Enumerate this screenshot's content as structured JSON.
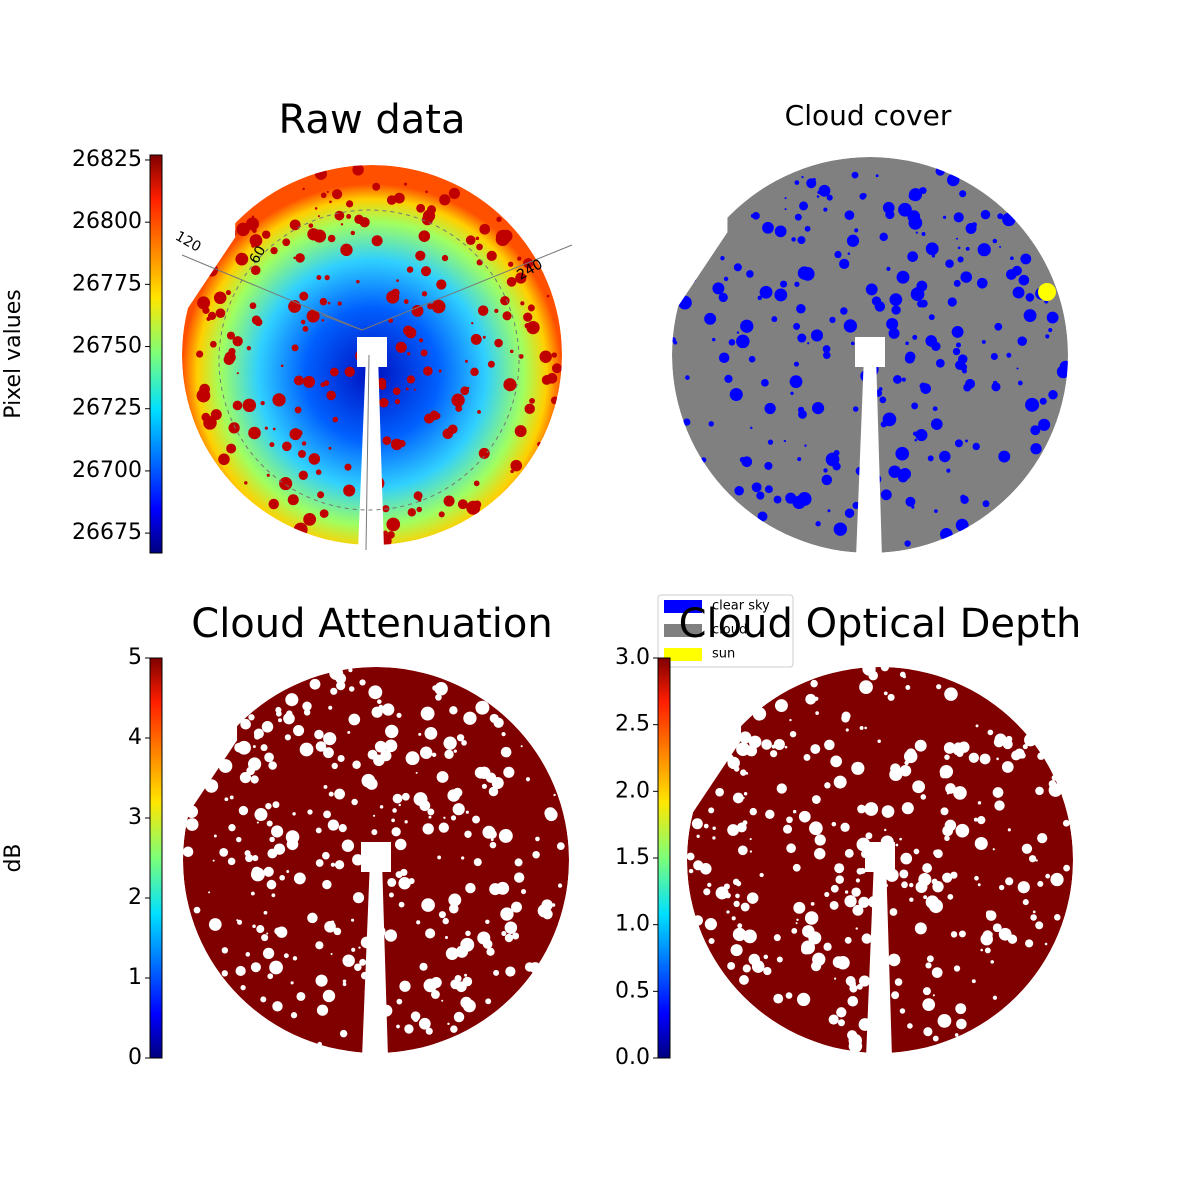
{
  "chart_data": [
    {
      "type": "heatmap",
      "title": "Raw data",
      "colormap": "jet",
      "colorbar_label": "Pixel values",
      "clim": [
        26667,
        26827
      ],
      "cticks": [
        26675,
        26700,
        26725,
        26750,
        26775,
        26800,
        26825
      ],
      "annotations": [
        "120",
        "60",
        "240"
      ]
    },
    {
      "type": "classification",
      "title": "Cloud cover",
      "series": [
        {
          "name": "clear sky",
          "color": "#0000ff"
        },
        {
          "name": "cloud",
          "color": "#808080"
        },
        {
          "name": "sun",
          "color": "#ffff00"
        }
      ]
    },
    {
      "type": "heatmap",
      "title": "Cloud Attenuation",
      "colormap": "jet",
      "colorbar_label": "dB",
      "clim": [
        0,
        5
      ],
      "cticks": [
        0,
        1,
        2,
        3,
        4,
        5
      ]
    },
    {
      "type": "heatmap",
      "title": "Cloud Optical Depth",
      "colormap": "jet",
      "clim": [
        0,
        3
      ],
      "cticks": [
        {
          "value": 0,
          "label": "0.0"
        },
        0.5,
        {
          "value": 1,
          "label": "1.0"
        },
        1.5,
        {
          "value": 2,
          "label": "2.0"
        },
        2.5,
        {
          "value": 3,
          "label": "3.0"
        }
      ]
    }
  ]
}
